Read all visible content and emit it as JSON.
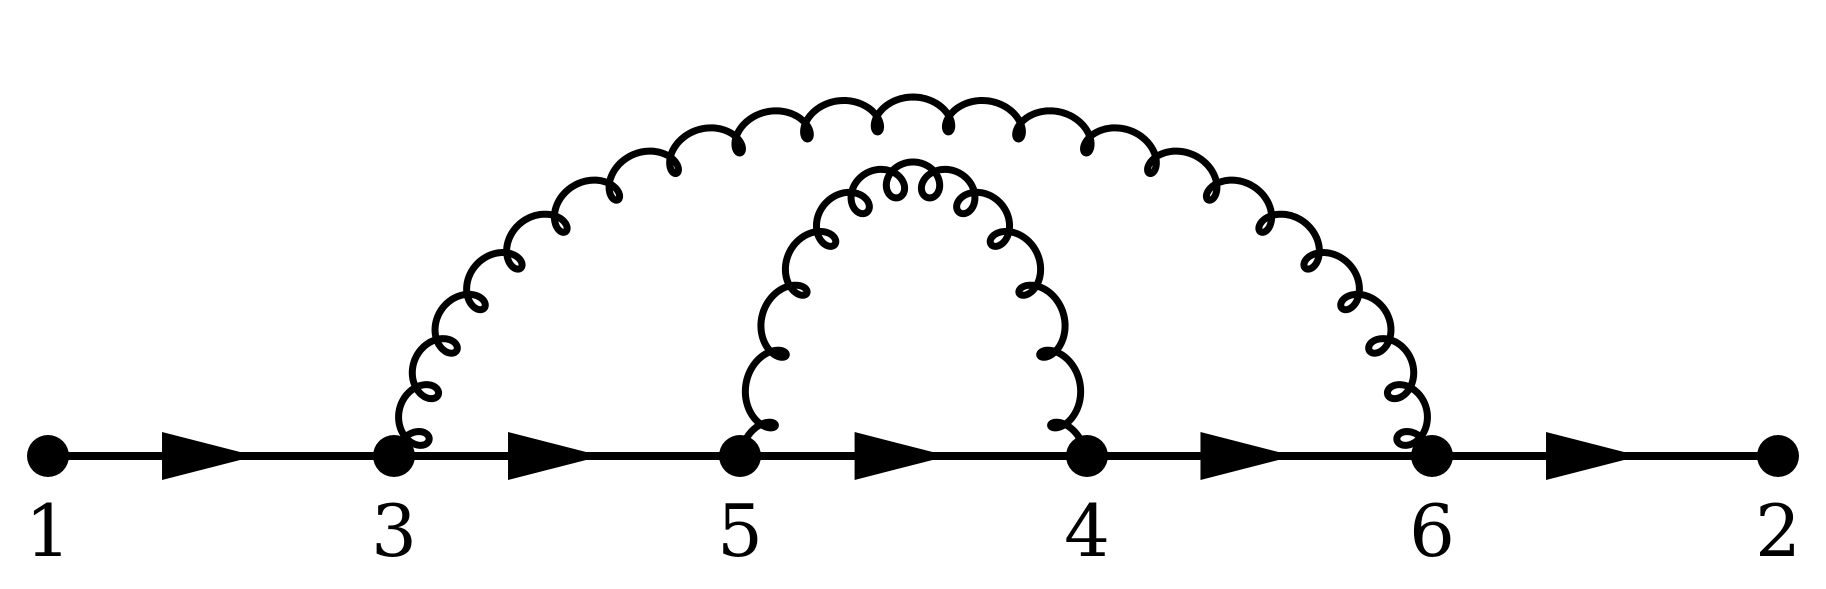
{
  "diagram": {
    "type": "feynman-diagram",
    "line_color": "#000000",
    "vertices": [
      {
        "id": "v1",
        "label": "1"
      },
      {
        "id": "v3",
        "label": "3"
      },
      {
        "id": "v5",
        "label": "5"
      },
      {
        "id": "v4",
        "label": "4"
      },
      {
        "id": "v6",
        "label": "6"
      },
      {
        "id": "v2",
        "label": "2"
      }
    ],
    "fermion_edges": [
      {
        "from": "v1",
        "to": "v3"
      },
      {
        "from": "v3",
        "to": "v5"
      },
      {
        "from": "v5",
        "to": "v4"
      },
      {
        "from": "v4",
        "to": "v6"
      },
      {
        "from": "v6",
        "to": "v2"
      }
    ],
    "photon_edges": [
      {
        "from": "v3",
        "to": "v6"
      },
      {
        "from": "v5",
        "to": "v4"
      }
    ]
  }
}
